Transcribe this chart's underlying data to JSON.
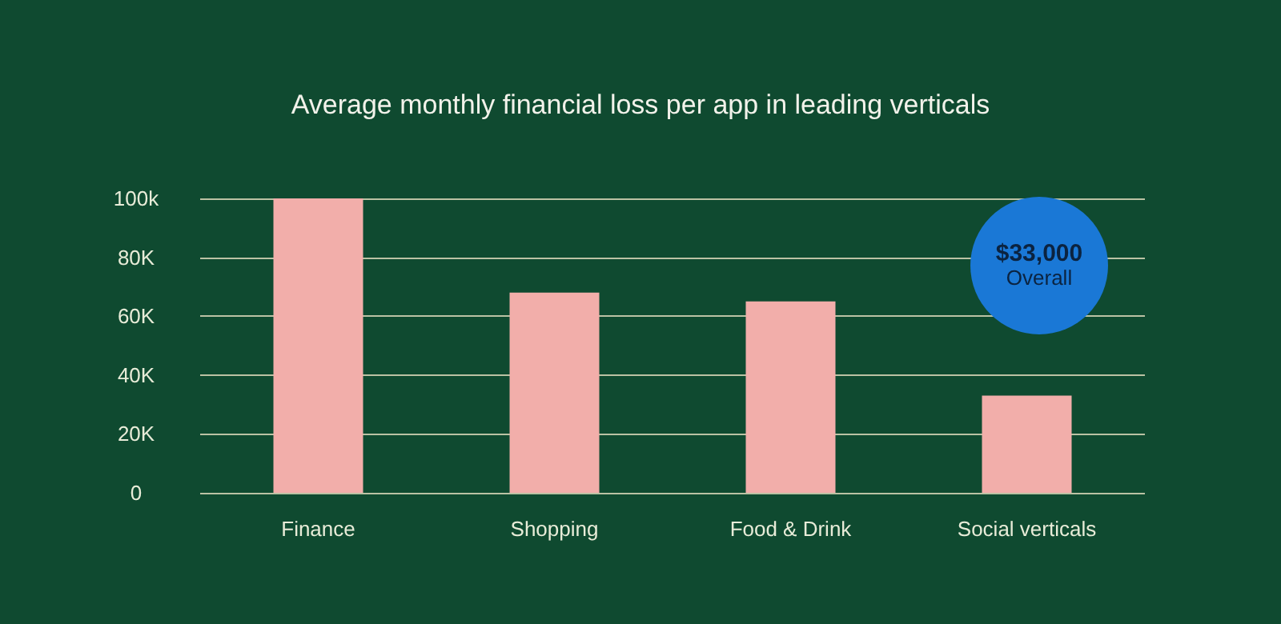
{
  "chart_data": {
    "type": "bar",
    "title": "Average monthly financial loss per app in leading verticals",
    "categories": [
      "Finance",
      "Shopping",
      "Food & Drink",
      "Social verticals"
    ],
    "values": [
      100000,
      68000,
      65000,
      33000
    ],
    "color": "#f2aeaa",
    "ylim": [
      0,
      100000
    ],
    "yticks": [
      0,
      {
        "value": 20000,
        "label": "20K"
      },
      {
        "value": 40000,
        "label": "40K"
      },
      {
        "value": 60000,
        "label": "60K"
      },
      {
        "value": 80000,
        "label": "80K"
      },
      {
        "value": 100000,
        "label": "100k"
      }
    ],
    "grid": "y",
    "annotations": [
      "$33,000",
      "Overall"
    ]
  }
}
